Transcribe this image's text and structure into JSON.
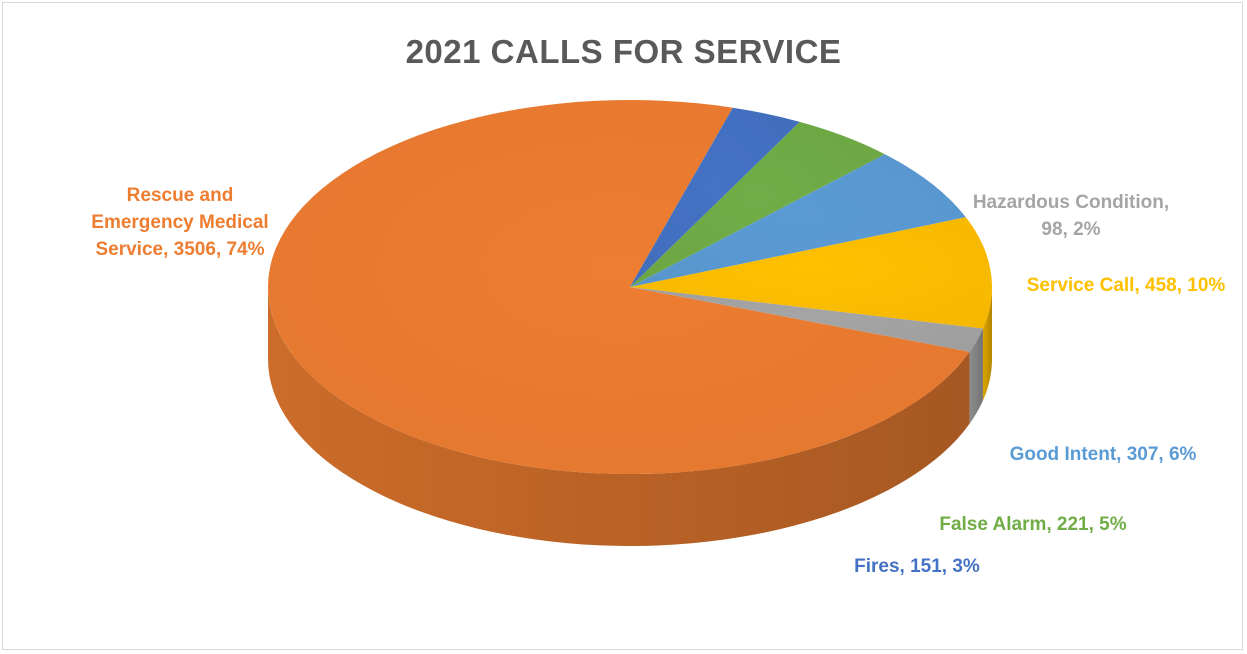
{
  "chart_data": {
    "type": "pie",
    "style": "3d",
    "title": "2021 CALLS FOR SERVICE",
    "slices": [
      {
        "name": "Rescue and Emergency Medical Service",
        "value": 3506,
        "percent": "74%",
        "color": "#ED7D31",
        "label_lines": [
          "Rescue and",
          "Emergency Medical",
          "Service, 3506, 74%"
        ]
      },
      {
        "name": "Hazardous Condition",
        "value": 98,
        "percent": "2%",
        "color": "#A5A5A5",
        "label_lines": [
          "Hazardous Condition,",
          "98, 2%"
        ]
      },
      {
        "name": "Service Call",
        "value": 458,
        "percent": "10%",
        "color": "#FFC000",
        "label_lines": [
          "Service Call, 458, 10%"
        ]
      },
      {
        "name": "Good Intent",
        "value": 307,
        "percent": "6%",
        "color": "#5B9BD5",
        "label_lines": [
          "Good Intent, 307, 6%"
        ]
      },
      {
        "name": "False Alarm",
        "value": 221,
        "percent": "5%",
        "color": "#70AD47",
        "label_lines": [
          "False Alarm, 221, 5%"
        ]
      },
      {
        "name": "Fires",
        "value": 151,
        "percent": "3%",
        "color": "#4472C4",
        "label_lines": [
          "Fires, 151, 3%"
        ]
      }
    ],
    "legend": "none"
  }
}
